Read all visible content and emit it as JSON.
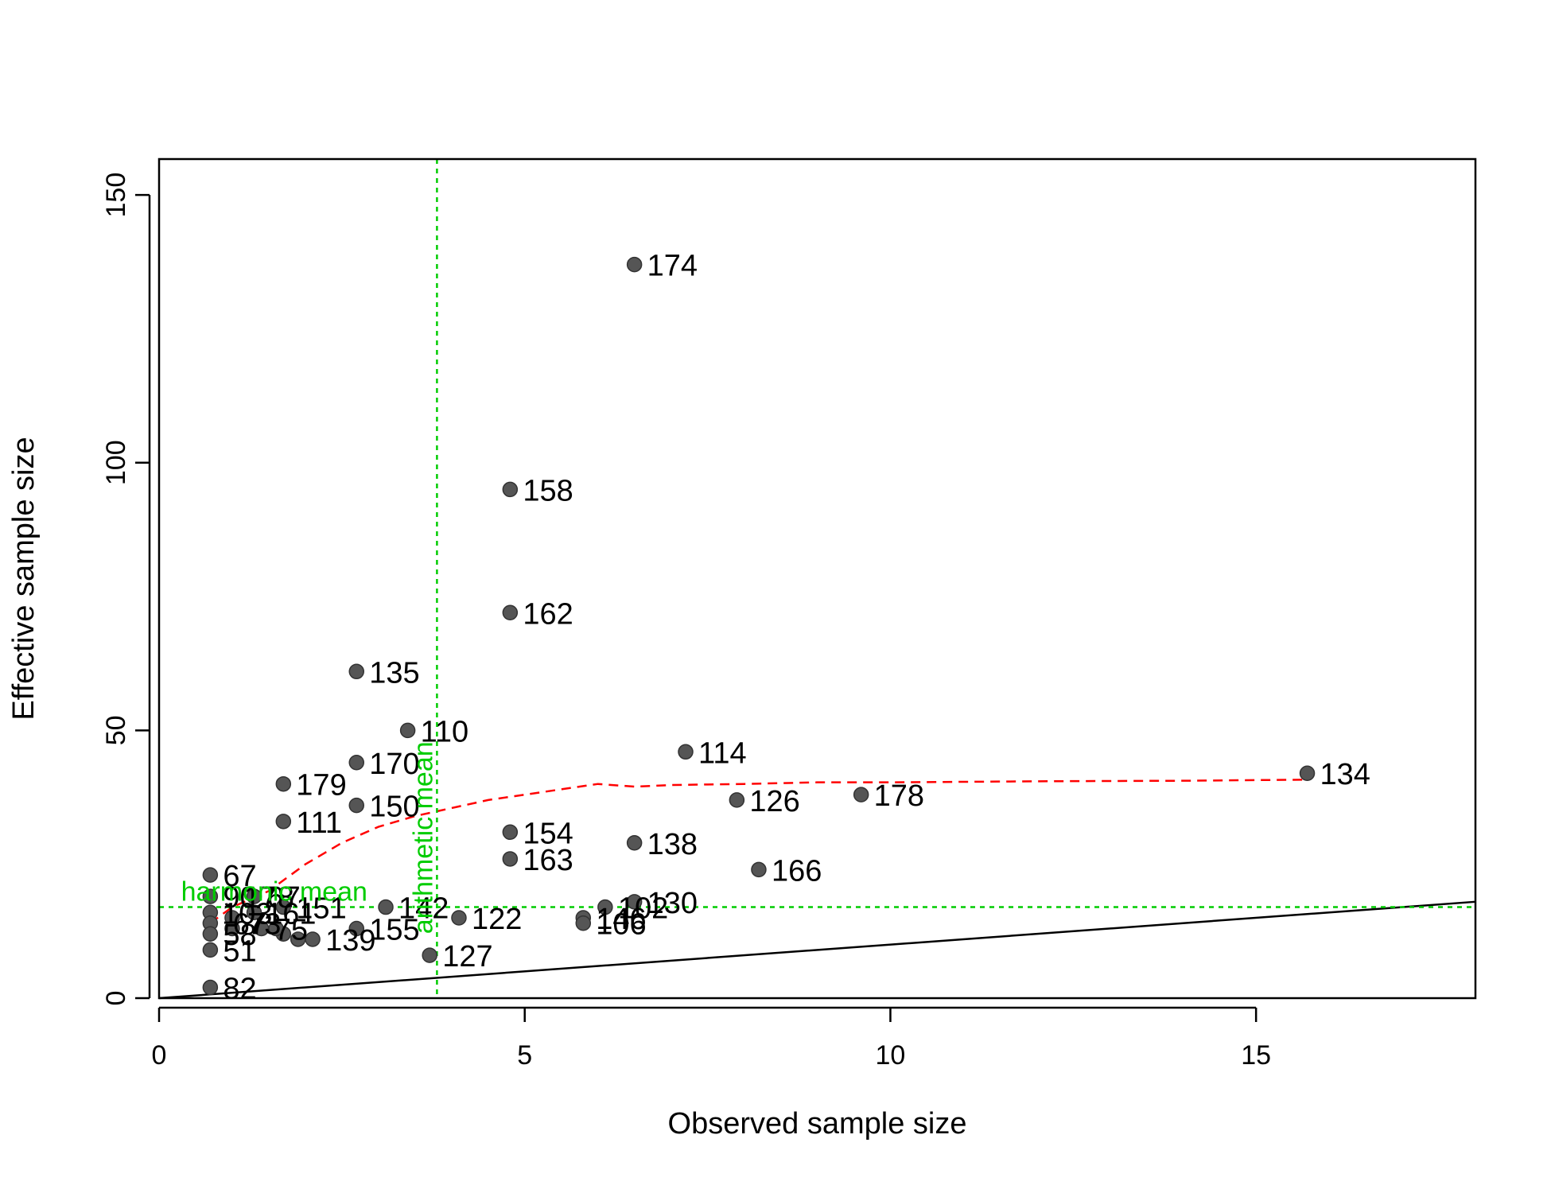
{
  "chart_data": {
    "type": "scatter",
    "title": "",
    "xlabel": "Observed sample size",
    "ylabel": "Effective sample size",
    "xlim": [
      0,
      18
    ],
    "ylim": [
      0,
      150
    ],
    "xticks": [
      0,
      5,
      10,
      15
    ],
    "yticks": [
      0,
      50,
      100,
      150
    ],
    "grid": false,
    "legend": "none",
    "colors": {
      "points": "#555555",
      "identity_line": "#000000",
      "smooth_line": "#ff0000",
      "reference_lines": "#00cc00"
    },
    "points": [
      {
        "id": "174",
        "x": 6.5,
        "y": 137
      },
      {
        "id": "158",
        "x": 4.8,
        "y": 95
      },
      {
        "id": "162",
        "x": 4.8,
        "y": 72
      },
      {
        "id": "135",
        "x": 2.7,
        "y": 61
      },
      {
        "id": "110",
        "x": 3.4,
        "y": 50
      },
      {
        "id": "170",
        "x": 2.7,
        "y": 44
      },
      {
        "id": "179",
        "x": 1.7,
        "y": 40
      },
      {
        "id": "150",
        "x": 2.7,
        "y": 36
      },
      {
        "id": "111",
        "x": 1.7,
        "y": 33
      },
      {
        "id": "114",
        "x": 7.2,
        "y": 46
      },
      {
        "id": "134",
        "x": 15.7,
        "y": 42
      },
      {
        "id": "178",
        "x": 9.6,
        "y": 38
      },
      {
        "id": "126",
        "x": 7.9,
        "y": 37
      },
      {
        "id": "154",
        "x": 4.8,
        "y": 31
      },
      {
        "id": "163",
        "x": 4.8,
        "y": 26
      },
      {
        "id": "138",
        "x": 6.5,
        "y": 29
      },
      {
        "id": "166",
        "x": 8.2,
        "y": 24
      },
      {
        "id": "67",
        "x": 0.7,
        "y": 23
      },
      {
        "id": "90",
        "x": 0.7,
        "y": 19
      },
      {
        "id": "67",
        "x": 1.3,
        "y": 19
      },
      {
        "id": "130",
        "x": 6.5,
        "y": 18
      },
      {
        "id": "102",
        "x": 6.1,
        "y": 17
      },
      {
        "id": "142",
        "x": 3.1,
        "y": 17
      },
      {
        "id": "151",
        "x": 1.7,
        "y": 17
      },
      {
        "id": "122",
        "x": 4.1,
        "y": 15
      },
      {
        "id": "146",
        "x": 5.8,
        "y": 15
      },
      {
        "id": "106",
        "x": 5.8,
        "y": 14
      },
      {
        "id": "155",
        "x": 2.7,
        "y": 13
      },
      {
        "id": "139",
        "x": 2.1,
        "y": 11
      },
      {
        "id": "75",
        "x": 1.4,
        "y": 13
      },
      {
        "id": "58",
        "x": 0.7,
        "y": 12
      },
      {
        "id": "51",
        "x": 0.7,
        "y": 9
      },
      {
        "id": "127",
        "x": 3.7,
        "y": 8
      },
      {
        "id": "82",
        "x": 0.7,
        "y": 2
      }
    ],
    "unreadable_points": [
      {
        "x": 0.7,
        "y": 16
      },
      {
        "x": 0.7,
        "y": 14
      },
      {
        "x": 1.0,
        "y": 15
      },
      {
        "x": 1.3,
        "y": 16
      },
      {
        "x": 1.0,
        "y": 13
      },
      {
        "x": 1.7,
        "y": 12
      },
      {
        "x": 1.9,
        "y": 11
      },
      {
        "x": 1.6,
        "y": 13
      }
    ],
    "overlapped_labels": [
      "178",
      "103",
      "161",
      "67",
      "73"
    ],
    "identity_line": {
      "label": "",
      "x": [
        0,
        18
      ],
      "y": [
        0,
        18
      ]
    },
    "smooth_line": {
      "style": "dashed",
      "x": [
        0.7,
        1.0,
        1.5,
        2.0,
        2.5,
        3.0,
        3.5,
        4.0,
        4.5,
        5.0,
        5.5,
        6.0,
        6.5,
        7.0,
        8.0,
        9.0,
        10.0,
        12.0,
        14.0,
        15.7
      ],
      "y": [
        14,
        17,
        20,
        25,
        29,
        32,
        34,
        35.5,
        37,
        38,
        39,
        40,
        39.5,
        39.8,
        40,
        40.3,
        40.3,
        40.5,
        40.6,
        40.8
      ]
    },
    "harmonic_mean": {
      "label": "harmonic mean",
      "value": 17
    },
    "arithmetic_mean": {
      "label": "arithmetic mean",
      "value": 3.8
    }
  }
}
